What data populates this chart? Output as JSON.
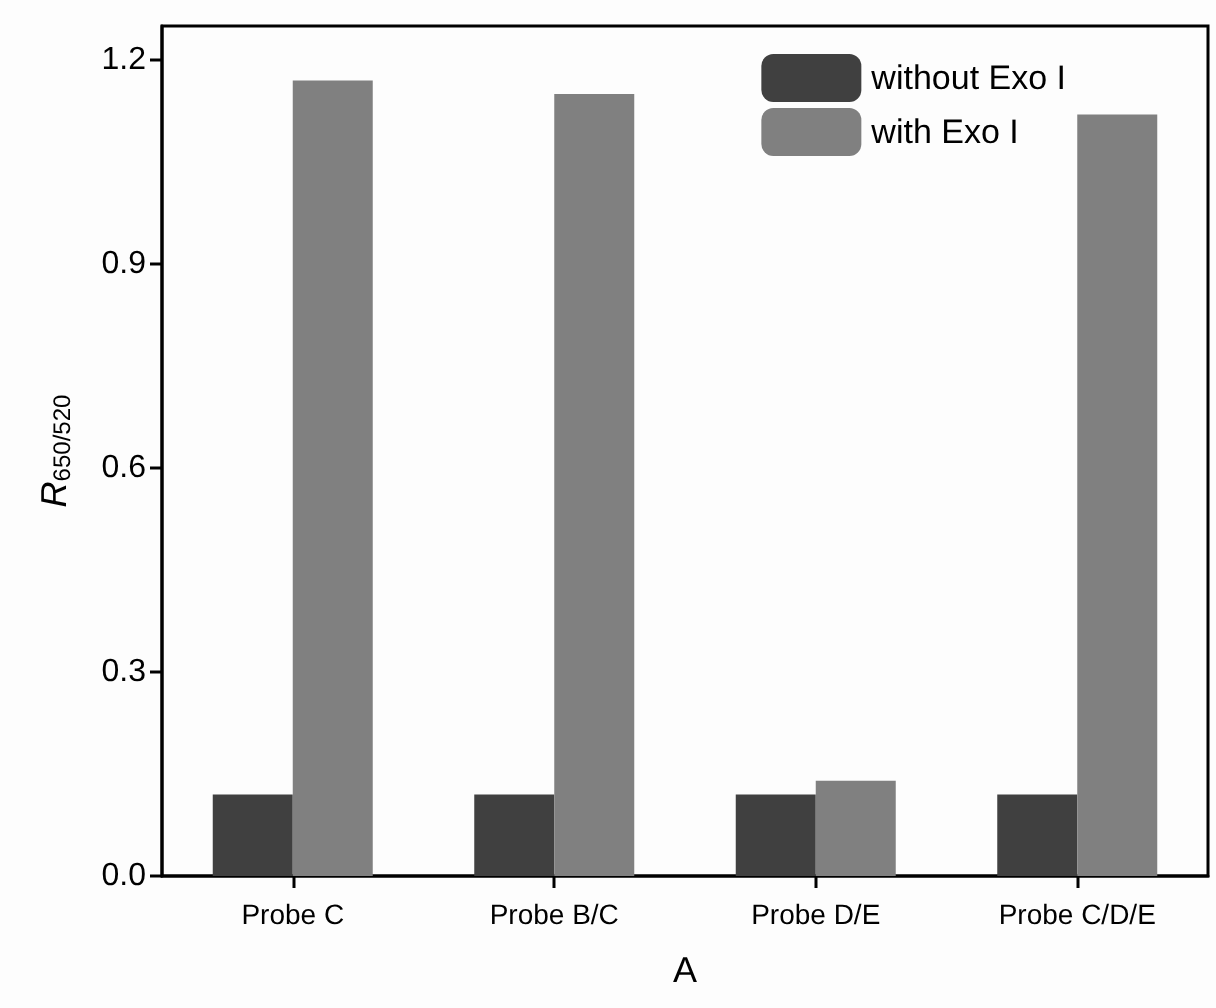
{
  "chart_data": {
    "type": "bar",
    "xlabel": "A",
    "ylabel": "R$_{650/520}$",
    "categories": [
      "Probe C",
      "Probe B/C",
      "Probe D/E",
      "Probe C/D/E"
    ],
    "series": [
      {
        "name": "without Exo I",
        "color": "#404040",
        "values": [
          0.12,
          0.12,
          0.12,
          0.12
        ]
      },
      {
        "name": "with Exo I",
        "color": "#808080",
        "values": [
          1.17,
          1.15,
          0.14,
          1.12
        ]
      }
    ],
    "ylim": [
      0,
      1.25
    ],
    "yticks": [
      {
        "value": 0,
        "label": "0.0"
      },
      {
        "value": 0.3,
        "label": "0.3"
      },
      {
        "value": 0.6,
        "label": "0.6"
      },
      {
        "value": 0.9,
        "label": "0.9"
      },
      {
        "value": 1.2,
        "label": "1.2"
      }
    ],
    "grid": false,
    "legend": "top right"
  }
}
